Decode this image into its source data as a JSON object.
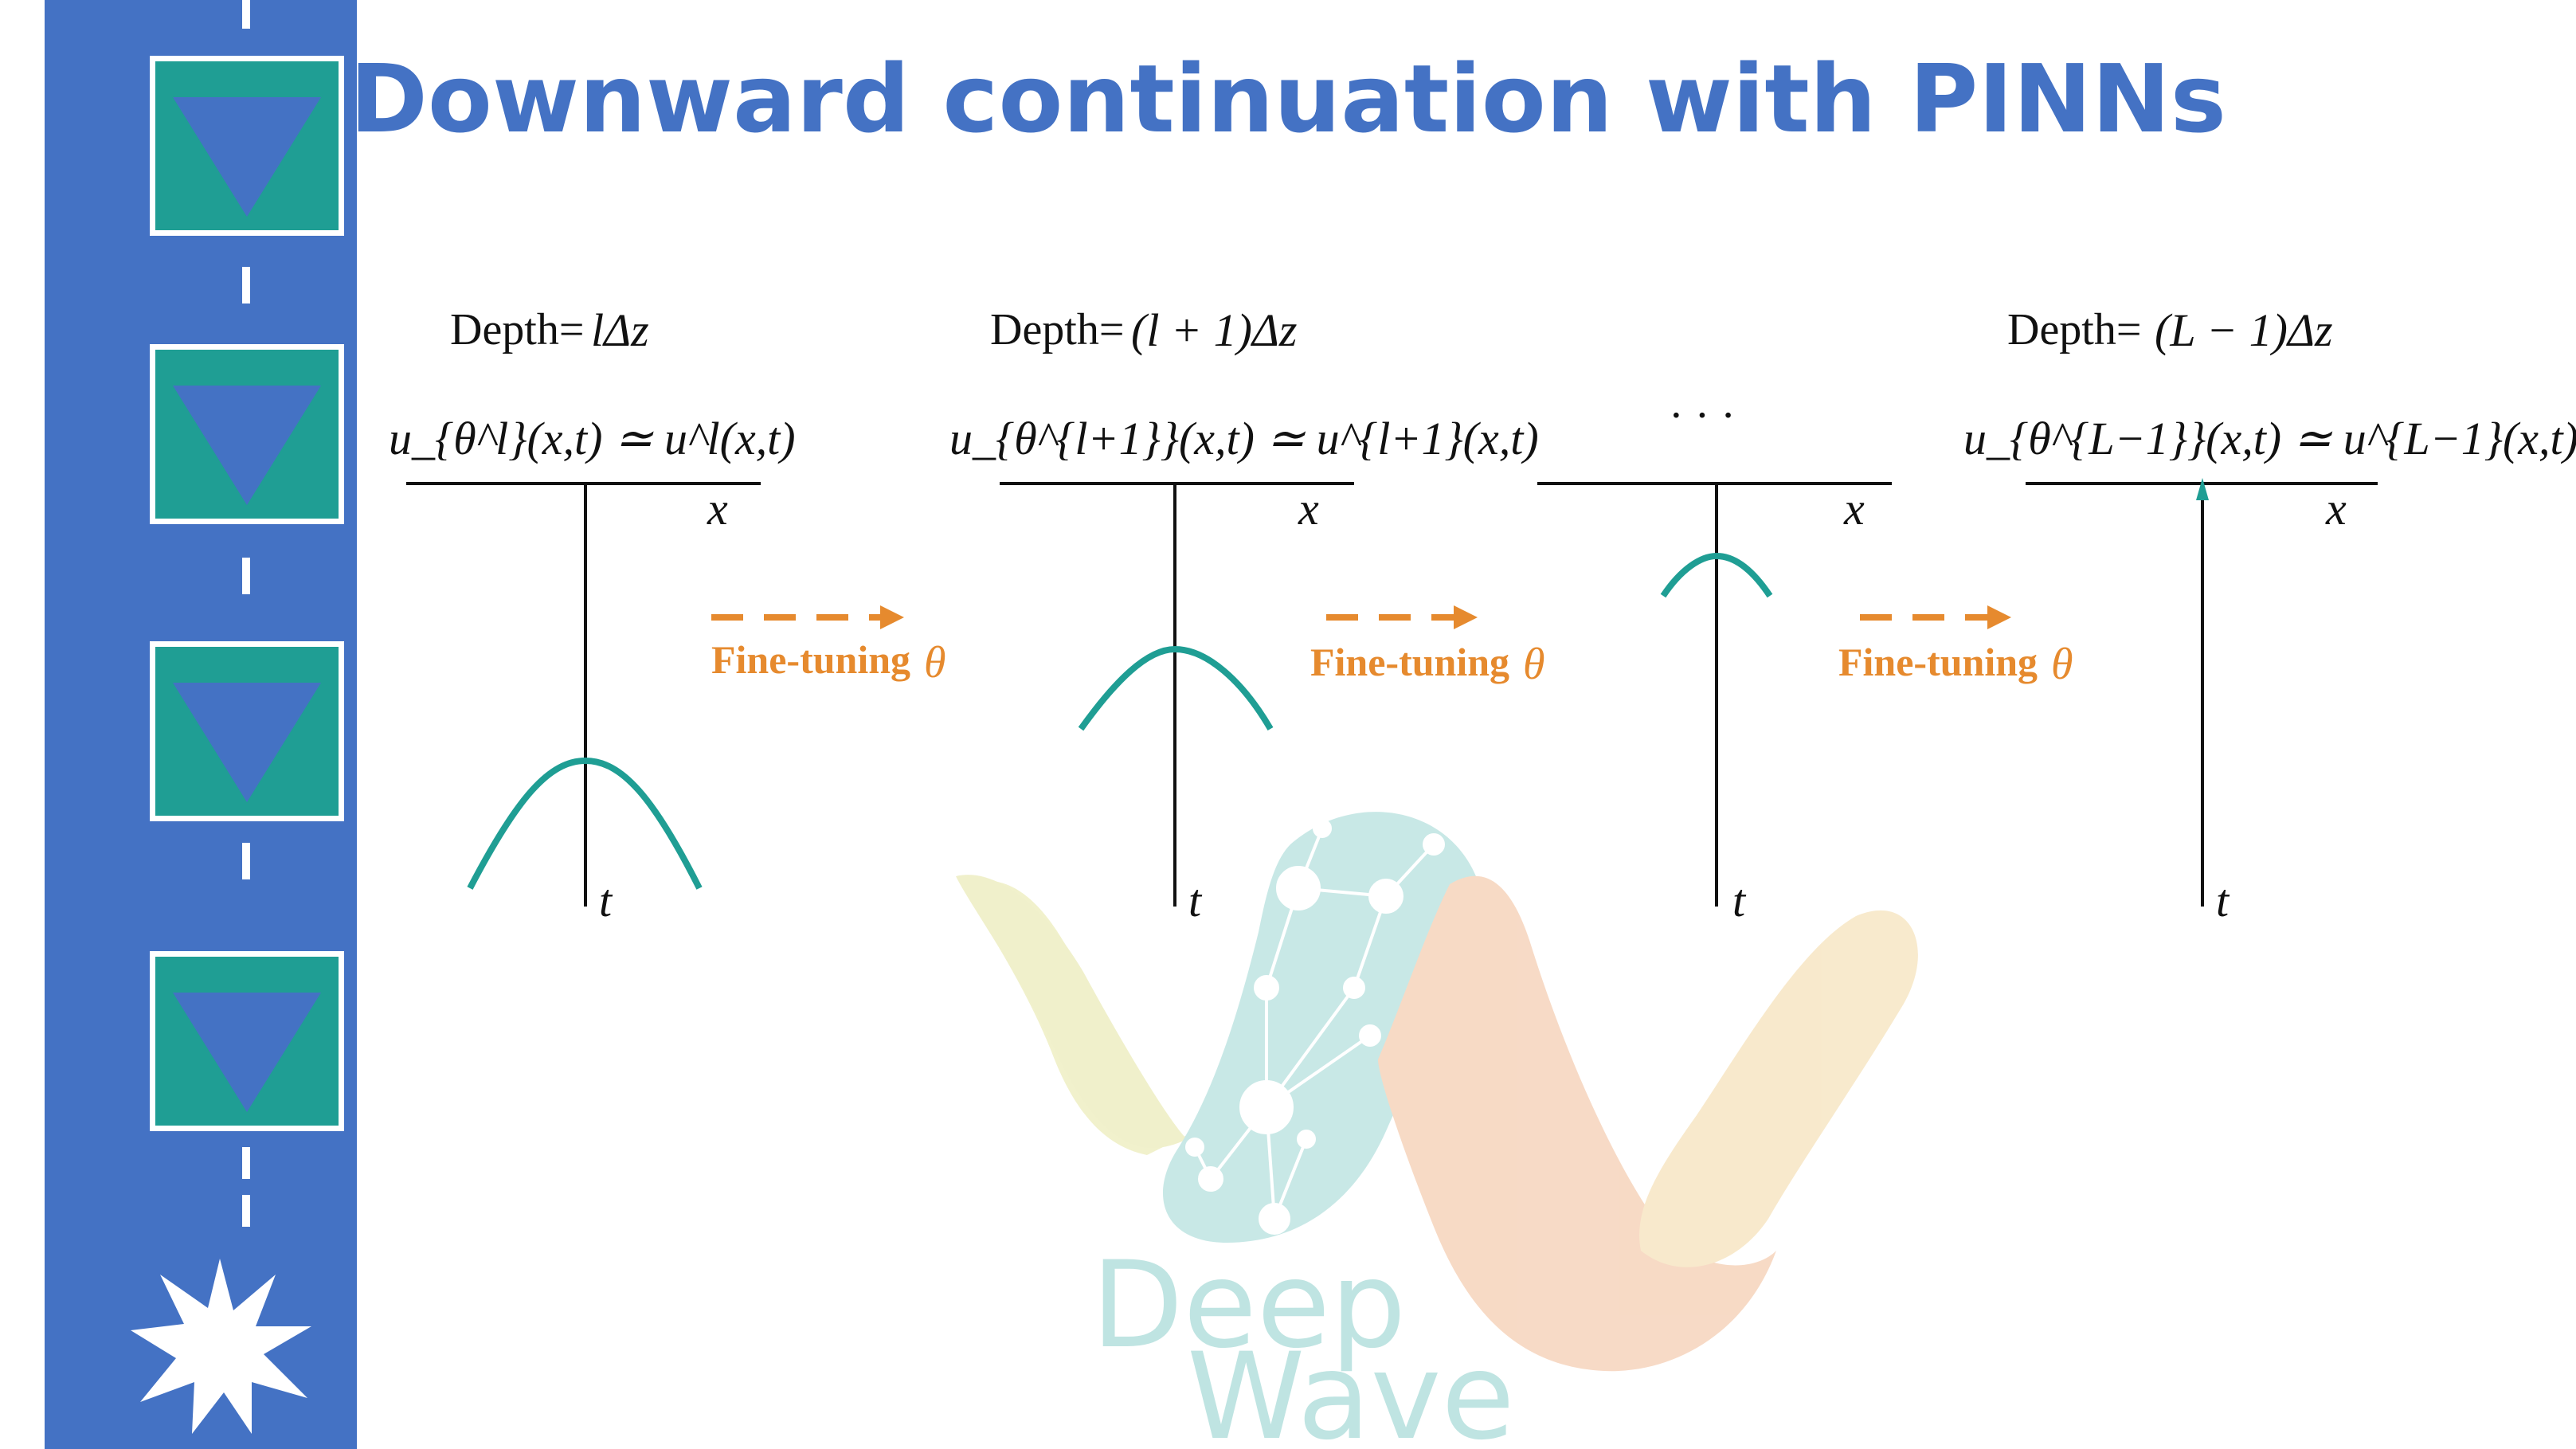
{
  "title": "Downward continuation with PINNs",
  "colors": {
    "sidebar": "#4472c4",
    "marker_fill": "#1f9e94",
    "marker_triangle": "#4472c4",
    "curve": "#1f9e94",
    "fine_tuning": "#e68a2e",
    "title": "#4472c4"
  },
  "sidebar": {
    "marker_count": 4,
    "end_icon": "burst-icon"
  },
  "panels": [
    {
      "depth_label": "Depth=",
      "depth_value": "lΔz",
      "equation": "u_{θ^l}(x,t) ≃ u^l(x,t)",
      "x_axis": "x",
      "t_axis": "t"
    },
    {
      "depth_label": "Depth=",
      "depth_value": "(l + 1)Δz",
      "equation": "u_{θ^{l+1}}(x,t) ≃ u^{l+1}(x,t)",
      "x_axis": "x",
      "t_axis": "t"
    },
    {
      "ellipsis": "· · ·",
      "x_axis": "x",
      "t_axis": "t"
    },
    {
      "depth_label": "Depth=",
      "depth_value": "(L − 1)Δz",
      "equation": "u_{θ^{L−1}}(x,t) ≃ u^{L−1}(x,t)",
      "x_axis": "x",
      "t_axis": "t"
    }
  ],
  "transitions": [
    {
      "label": "Fine-tuning",
      "symbol": "θ"
    },
    {
      "label": "Fine-tuning",
      "symbol": "θ"
    },
    {
      "label": "Fine-tuning",
      "symbol": "θ"
    }
  ],
  "watermark": {
    "line1": "Deep",
    "line2": "Wave"
  }
}
